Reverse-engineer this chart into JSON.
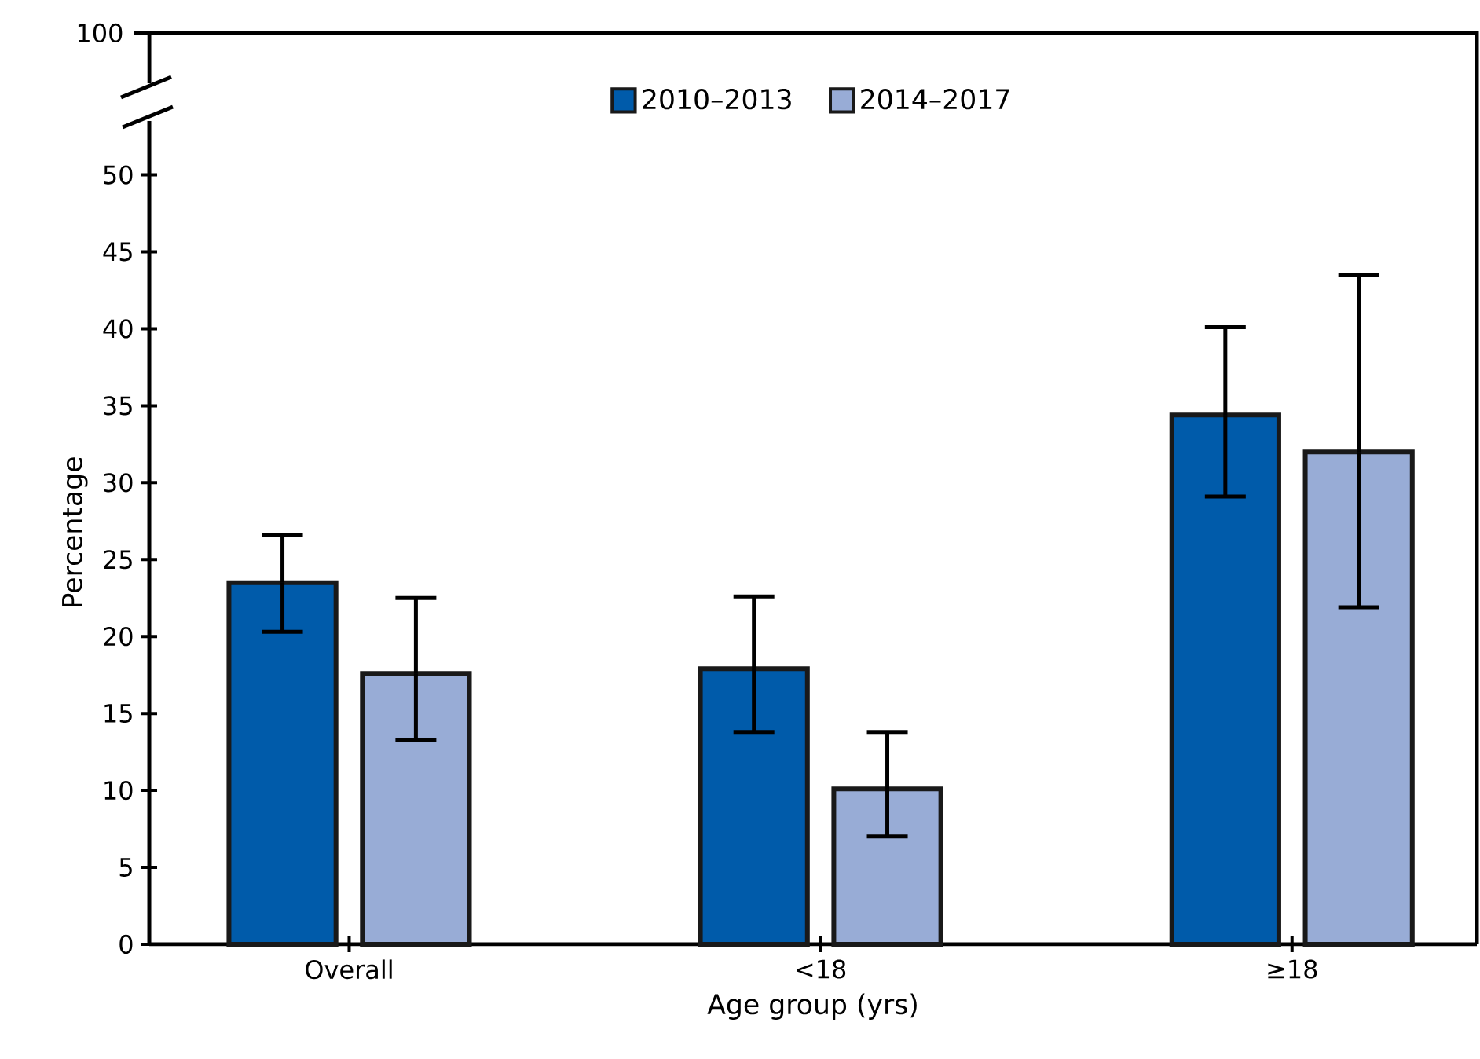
{
  "chart_data": {
    "type": "bar",
    "categories": [
      "Overall",
      "<18",
      "≥18"
    ],
    "xlabel": "Age group (yrs)",
    "ylabel": "Percentage",
    "ylim": [
      0,
      53.5
    ],
    "yticks": [
      0,
      5,
      10,
      15,
      20,
      25,
      30,
      35,
      40,
      45,
      50
    ],
    "legend": "top",
    "annotations": [
      "100"
    ],
    "series": [
      {
        "name": "2010–2013",
        "color": "#005baa",
        "values": [
          23.5,
          17.9,
          34.4
        ],
        "errors": [
          [
            20.3,
            26.6
          ],
          [
            13.8,
            22.6
          ],
          [
            29.1,
            40.1
          ]
        ]
      },
      {
        "name": "2014–2017",
        "color": "#98acd6",
        "values": [
          17.6,
          10.1,
          32.0
        ],
        "errors": [
          [
            13.3,
            22.5
          ],
          [
            7.0,
            13.8
          ],
          [
            21.9,
            43.5
          ]
        ]
      }
    ]
  }
}
